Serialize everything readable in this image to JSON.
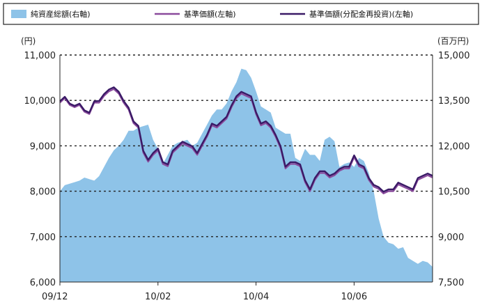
{
  "chart_data": {
    "type": "line",
    "legend": {
      "placement": "top",
      "entries": [
        {
          "key": "nav",
          "label": "純資産総額(右軸)",
          "style": "area",
          "color": "#8ec3e8"
        },
        {
          "key": "base_price",
          "label": "基準価額(左軸)",
          "style": "line",
          "color": "#8a4a9c"
        },
        {
          "key": "base_price_reinvest",
          "label": "基準価額(分配金再投資)(左軸)",
          "style": "line",
          "color": "#3a1a66"
        }
      ]
    },
    "left_axis": {
      "unit": "(円)",
      "range": [
        6000,
        11000
      ],
      "ticks": [
        6000,
        7000,
        8000,
        9000,
        10000,
        11000
      ],
      "tick_labels": [
        "6,000",
        "7,000",
        "8,000",
        "9,000",
        "10,000",
        "11,000"
      ]
    },
    "right_axis": {
      "unit": "(百万円)",
      "range": [
        7500,
        15000
      ],
      "ticks": [
        7500,
        9000,
        10500,
        12000,
        13500,
        15000
      ],
      "tick_labels": [
        "7,500",
        "9,000",
        "10,500",
        "12,000",
        "13,500",
        "15,000"
      ]
    },
    "x_axis": {
      "range": [
        0,
        38
      ],
      "ticks": [
        0,
        10,
        20,
        30
      ],
      "tick_labels": [
        "09/12",
        "10/02",
        "10/04",
        "10/06"
      ]
    },
    "grid": {
      "horizontal": "dotted"
    },
    "series": [
      {
        "name": "純資産総額(右軸)",
        "axis": "right",
        "type": "area",
        "x": [
          0,
          0.5,
          1,
          1.5,
          2,
          2.5,
          3,
          3.5,
          4,
          4.5,
          5,
          5.5,
          6,
          6.5,
          7,
          7.5,
          8,
          8.5,
          9,
          9.5,
          10,
          10.5,
          11,
          11.5,
          12,
          12.5,
          13,
          13.5,
          14,
          14.5,
          15,
          15.5,
          16,
          16.5,
          17,
          17.5,
          18,
          18.5,
          19,
          19.5,
          20,
          20.5,
          21,
          21.5,
          22,
          22.5,
          23,
          23.5,
          24,
          24.5,
          25,
          25.5,
          26,
          26.5,
          27,
          27.5,
          28,
          28.5,
          29,
          29.5,
          30,
          30.5,
          31,
          31.5,
          32,
          32.5,
          33,
          33.5,
          34,
          34.5,
          35,
          35.5,
          36,
          36.5,
          37,
          37.5,
          38
        ],
        "values": [
          10500,
          10700,
          10750,
          10800,
          10850,
          10950,
          10900,
          10850,
          11000,
          11300,
          11600,
          11850,
          12000,
          12200,
          12500,
          12500,
          12600,
          12650,
          12700,
          12200,
          11900,
          11400,
          11700,
          12000,
          12100,
          12150,
          12200,
          12000,
          12100,
          12400,
          12700,
          13000,
          13200,
          13200,
          13400,
          13800,
          14100,
          14550,
          14500,
          14250,
          13800,
          13300,
          13200,
          13100,
          12600,
          12500,
          12400,
          12400,
          11600,
          11500,
          11900,
          11700,
          11700,
          11500,
          12200,
          12300,
          12150,
          11300,
          11400,
          11450,
          11300,
          11600,
          11500,
          11100,
          10500,
          9600,
          9000,
          8800,
          8750,
          8600,
          8650,
          8300,
          8200,
          8100,
          8200,
          8150,
          8000
        ]
      },
      {
        "name": "基準価額(左軸)",
        "axis": "left",
        "type": "line",
        "x": [
          0,
          0.5,
          1,
          1.5,
          2,
          2.5,
          3,
          3.5,
          4,
          4.5,
          5,
          5.5,
          6,
          6.5,
          7,
          7.5,
          8,
          8.5,
          9,
          9.5,
          10,
          10.5,
          11,
          11.5,
          12,
          12.5,
          13,
          13.5,
          14,
          14.5,
          15,
          15.5,
          16,
          16.5,
          17,
          17.5,
          18,
          18.5,
          19,
          19.5,
          20,
          20.5,
          21,
          21.5,
          22,
          22.5,
          23,
          23.5,
          24,
          24.5,
          25,
          25.5,
          26,
          26.5,
          27,
          27.5,
          28,
          28.5,
          29,
          29.5,
          30,
          30.5,
          31,
          31.5,
          32,
          32.5,
          33,
          33.5,
          34,
          34.5,
          35,
          35.5,
          36,
          36.5,
          37,
          37.5,
          38
        ],
        "values": [
          9950,
          10050,
          9900,
          9850,
          9900,
          9750,
          9700,
          9950,
          9950,
          10100,
          10200,
          10250,
          10150,
          9950,
          9800,
          9500,
          9400,
          8850,
          8650,
          8800,
          8900,
          8600,
          8550,
          8850,
          8950,
          9050,
          9000,
          8950,
          8800,
          9000,
          9200,
          9450,
          9400,
          9500,
          9600,
          9850,
          10050,
          10150,
          10100,
          10050,
          9700,
          9450,
          9500,
          9400,
          9200,
          8950,
          8500,
          8600,
          8600,
          8550,
          8200,
          8000,
          8250,
          8400,
          8400,
          8300,
          8350,
          8450,
          8500,
          8500,
          8750,
          8550,
          8500,
          8250,
          8100,
          8050,
          7950,
          8000,
          8000,
          8150,
          8100,
          8050,
          8000,
          8250,
          8300,
          8350,
          8300
        ]
      },
      {
        "name": "基準価額(分配金再投資)(左軸)",
        "axis": "left",
        "type": "line",
        "x": [
          0,
          0.5,
          1,
          1.5,
          2,
          2.5,
          3,
          3.5,
          4,
          4.5,
          5,
          5.5,
          6,
          6.5,
          7,
          7.5,
          8,
          8.5,
          9,
          9.5,
          10,
          10.5,
          11,
          11.5,
          12,
          12.5,
          13,
          13.5,
          14,
          14.5,
          15,
          15.5,
          16,
          16.5,
          17,
          17.5,
          18,
          18.5,
          19,
          19.5,
          20,
          20.5,
          21,
          21.5,
          22,
          22.5,
          23,
          23.5,
          24,
          24.5,
          25,
          25.5,
          26,
          26.5,
          27,
          27.5,
          28,
          28.5,
          29,
          29.5,
          30,
          30.5,
          31,
          31.5,
          32,
          32.5,
          33,
          33.5,
          34,
          34.5,
          35,
          35.5,
          36,
          36.5,
          37,
          37.5,
          38
        ],
        "values": [
          9980,
          10080,
          9930,
          9880,
          9930,
          9780,
          9730,
          9980,
          9990,
          10140,
          10240,
          10290,
          10190,
          9990,
          9840,
          9540,
          9440,
          8890,
          8690,
          8840,
          8940,
          8640,
          8590,
          8890,
          8990,
          9090,
          9040,
          8990,
          8840,
          9040,
          9240,
          9490,
          9440,
          9540,
          9640,
          9890,
          10090,
          10190,
          10140,
          10090,
          9740,
          9490,
          9540,
          9440,
          9240,
          8990,
          8540,
          8640,
          8640,
          8590,
          8240,
          8040,
          8290,
          8440,
          8440,
          8340,
          8390,
          8490,
          8540,
          8540,
          8790,
          8590,
          8540,
          8290,
          8140,
          8090,
          7990,
          8040,
          8040,
          8190,
          8140,
          8090,
          8040,
          8290,
          8340,
          8390,
          8340
        ]
      }
    ]
  }
}
